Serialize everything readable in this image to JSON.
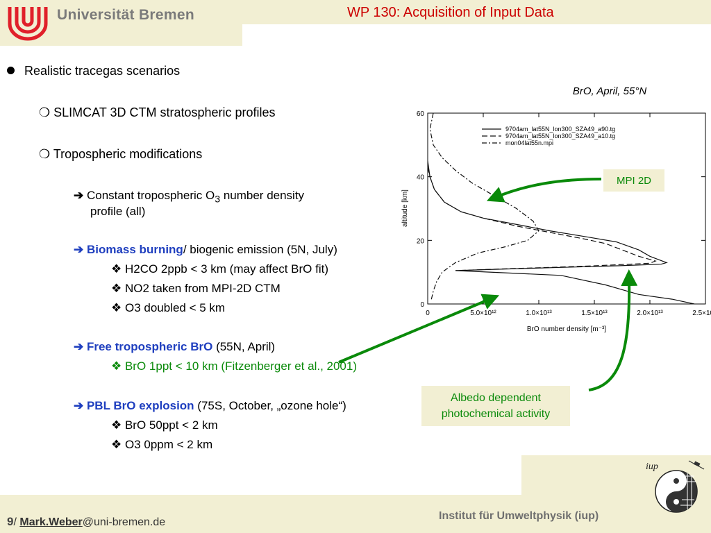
{
  "header": {
    "university": "Universität Bremen",
    "title": "WP 130: Acquisition of Input Data"
  },
  "content": {
    "b1": "Realistic tracegas scenarios",
    "s1": "SLIMCAT 3D CTM stratospheric profiles",
    "s2": "Tropospheric modifications",
    "c1a": "Constant tropospheric O",
    "c1sub": "3",
    "c1b": " number density",
    "c1c": "profile (all)",
    "c2a": "Biomass burning",
    "c2b": "/ biogenic emission (5N, July)",
    "d1": "H2CO 2ppb < 3 km (may affect BrO fit)",
    "d2": "NO2 taken from MPI-2D CTM",
    "d3": "O3 doubled < 5 km",
    "c3a": "Free tropospheric BrO",
    "c3b": " (55N, April)",
    "d4": "BrO 1ppt < 10 km (Fitzenberger et al., 2001)",
    "c4a": "PBL BrO explosion",
    "c4b": " (75S, October, „ozone hole“)",
    "d5": "BrO 50ppt < 2 km",
    "d6": "O3 0ppm < 2 km"
  },
  "callouts": {
    "mpi": "MPI 2D",
    "albedo_line1": "Albedo dependent",
    "albedo_line2": "photochemical activity"
  },
  "colors": {
    "header_bg": "#f2efd3",
    "title": "#cc0000",
    "highlight": "#1f3fbf",
    "annotation": "#0a8a0a"
  },
  "chart_data": {
    "type": "line",
    "title": "BrO, April, 55°N",
    "xlabel": "BrO number density [m⁻³]",
    "ylabel": "altitude [km]",
    "xlim": [
      0,
      25000000000000.0
    ],
    "ylim": [
      0,
      60
    ],
    "x_ticks": [
      "0",
      "5.0×10¹²",
      "1.0×10¹³",
      "1.5×10¹³",
      "2.0×10¹³",
      "2.5×10¹³"
    ],
    "y_ticks": [
      "0",
      "20",
      "40",
      "60"
    ],
    "legend_position": "top-right",
    "series": [
      {
        "name": "9704am_lat55N_lon300_SZA49_a90.tg",
        "style": "solid",
        "points": [
          [
            0,
            45
          ],
          [
            200000000000.0,
            40
          ],
          [
            600000000000.0,
            36
          ],
          [
            1500000000000.0,
            32
          ],
          [
            3000000000000.0,
            29
          ],
          [
            5000000000000.0,
            27
          ],
          [
            8000000000000.0,
            25
          ],
          [
            11000000000000.0,
            23
          ],
          [
            14500000000000.0,
            21
          ],
          [
            17000000000000.0,
            19.5
          ],
          [
            19000000000000.0,
            17
          ],
          [
            20000000000000.0,
            15
          ],
          [
            21500000000000.0,
            13
          ],
          [
            21000000000000.0,
            12.5
          ],
          [
            17000000000000.0,
            12
          ],
          [
            12000000000000.0,
            11.5
          ],
          [
            7000000000000.0,
            11
          ],
          [
            2500000000000.0,
            10.5
          ],
          [
            12000000000000.0,
            9
          ],
          [
            16000000000000.0,
            6
          ],
          [
            19000000000000.0,
            3
          ],
          [
            22000000000000.0,
            1.5
          ],
          [
            24000000000000.0,
            0
          ]
        ]
      },
      {
        "name": "9704am_lat55N_lon300_SZA49_a10.tg",
        "style": "dashed",
        "points": [
          [
            0,
            43
          ],
          [
            200000000000.0,
            40
          ],
          [
            600000000000.0,
            36
          ],
          [
            1500000000000.0,
            32
          ],
          [
            3000000000000.0,
            29
          ],
          [
            5000000000000.0,
            27
          ],
          [
            8000000000000.0,
            24.5
          ],
          [
            11000000000000.0,
            22.5
          ],
          [
            14000000000000.0,
            20.5
          ],
          [
            16000000000000.0,
            19
          ],
          [
            17500000000000.0,
            17
          ],
          [
            19000000000000.0,
            15
          ],
          [
            20500000000000.0,
            13.5
          ],
          [
            20000000000000.0,
            12.8
          ],
          [
            15000000000000.0,
            12
          ],
          [
            11000000000000.0,
            11.5
          ],
          [
            6500000000000.0,
            11
          ],
          [
            2500000000000.0,
            10.5
          ]
        ]
      },
      {
        "name": "mon04lat55n.mpi",
        "style": "dashdot",
        "points": [
          [
            500000000000.0,
            60
          ],
          [
            200000000000.0,
            55
          ],
          [
            500000000000.0,
            50
          ],
          [
            1300000000000.0,
            46
          ],
          [
            2500000000000.0,
            42
          ],
          [
            4000000000000.0,
            38
          ],
          [
            6000000000000.0,
            34
          ],
          [
            8000000000000.0,
            30
          ],
          [
            9500000000000.0,
            26
          ],
          [
            10000000000000.0,
            23
          ],
          [
            9000000000000.0,
            20
          ],
          [
            7000000000000.0,
            18
          ],
          [
            4500000000000.0,
            16
          ],
          [
            2500000000000.0,
            13
          ],
          [
            1300000000000.0,
            10
          ],
          [
            800000000000.0,
            7
          ],
          [
            500000000000.0,
            4
          ],
          [
            300000000000.0,
            1
          ]
        ]
      }
    ]
  },
  "footer": {
    "page": "9",
    "sep": "/ ",
    "name": "Mark.Weber",
    "email": "@uni-bremen.de",
    "institute": "Institut für Umweltphysik (iup)",
    "iup_logo": "iup"
  }
}
